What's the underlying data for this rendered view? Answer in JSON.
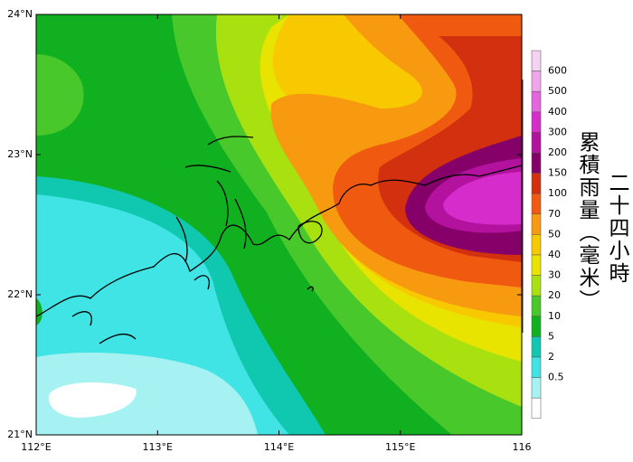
{
  "map": {
    "lat_labels": [
      "24°N",
      "23°N",
      "22°N",
      "21°N"
    ],
    "lon_labels": [
      "112°E",
      "113°E",
      "114°E",
      "115°E",
      "116"
    ],
    "title_lines": [
      "二十四小時",
      "累積雨量（毫米）"
    ],
    "colorbar": {
      "levels": [
        600,
        500,
        400,
        300,
        200,
        150,
        100,
        70,
        50,
        40,
        30,
        20,
        10,
        5,
        2,
        0.5
      ],
      "colors": [
        "#f6d2f2",
        "#f0a4ea",
        "#e466de",
        "#d62ccc",
        "#b2129e",
        "#86006a",
        "#d2300e",
        "#f05a10",
        "#f89a10",
        "#f8c800",
        "#e8e400",
        "#a8e010",
        "#48c82a",
        "#10b020",
        "#10c8b0",
        "#40e4e4",
        "#a6f2f2",
        "#ffffff"
      ]
    }
  }
}
